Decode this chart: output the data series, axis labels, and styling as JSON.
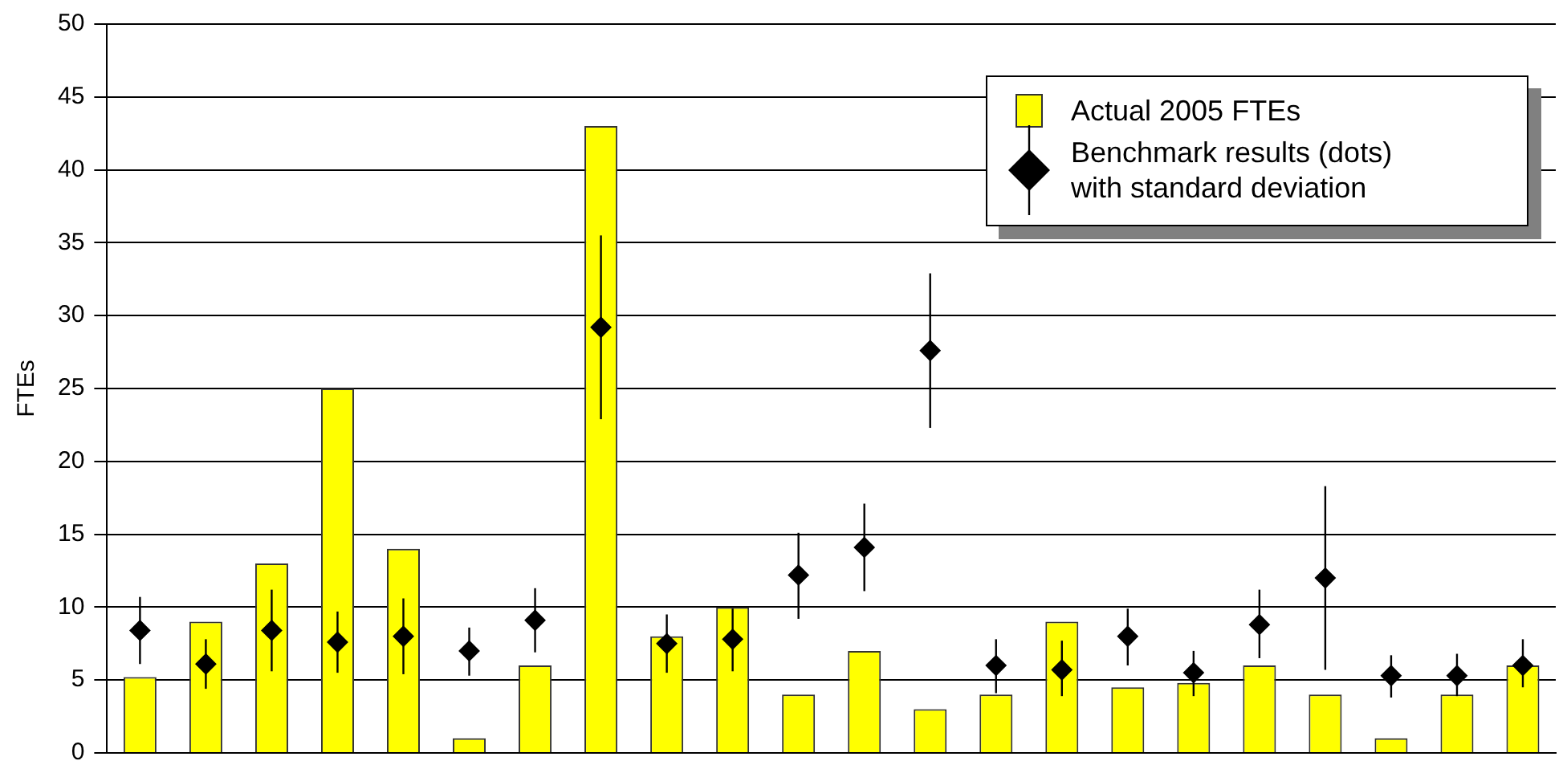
{
  "chart_data": {
    "type": "bar",
    "ylabel": "FTEs",
    "categories": [
      null,
      null,
      null,
      null,
      null,
      null,
      null,
      null,
      null,
      null,
      null,
      null,
      null,
      null,
      null,
      null,
      null,
      null,
      null,
      null,
      null,
      null
    ],
    "series": [
      {
        "name": "Actual 2005 FTEs",
        "color": "#ffff00",
        "values": [
          5.2,
          9,
          13,
          25,
          14,
          1,
          6,
          43,
          8,
          10,
          4,
          7,
          3,
          4,
          9,
          4.5,
          4.8,
          6,
          4,
          1,
          4,
          6
        ]
      },
      {
        "name": "Benchmark results (dots) with standard deviation",
        "type": "scatter",
        "color": "#000000",
        "marker": "diamond",
        "values": [
          8.4,
          6.1,
          8.4,
          7.6,
          8.0,
          7.0,
          9.1,
          29.2,
          7.5,
          7.8,
          12.2,
          14.1,
          27.6,
          6.0,
          5.7,
          8.0,
          5.5,
          8.8,
          12.0,
          5.3,
          5.3,
          6.0
        ],
        "errors": [
          [
            6.1,
            10.7
          ],
          [
            4.4,
            7.8
          ],
          [
            5.6,
            11.2
          ],
          [
            5.5,
            9.7
          ],
          [
            5.4,
            10.6
          ],
          [
            5.3,
            8.6
          ],
          [
            6.9,
            11.3
          ],
          [
            22.9,
            35.5
          ],
          [
            5.5,
            9.5
          ],
          [
            5.6,
            9.9
          ],
          [
            9.2,
            15.1
          ],
          [
            11.1,
            17.1
          ],
          [
            22.3,
            32.9
          ],
          [
            4.1,
            7.8
          ],
          [
            3.9,
            7.7
          ],
          [
            6.0,
            9.9
          ],
          [
            3.9,
            7.0
          ],
          [
            6.5,
            11.2
          ],
          [
            5.7,
            18.3
          ],
          [
            3.8,
            6.7
          ],
          [
            3.9,
            6.8
          ],
          [
            4.5,
            7.8
          ]
        ]
      }
    ],
    "ylim": [
      0,
      50
    ],
    "yticks": [
      0,
      5,
      10,
      15,
      20,
      25,
      30,
      35,
      40,
      45,
      50
    ],
    "grid": "y",
    "legend": "top right",
    "tick_labels": "y"
  }
}
